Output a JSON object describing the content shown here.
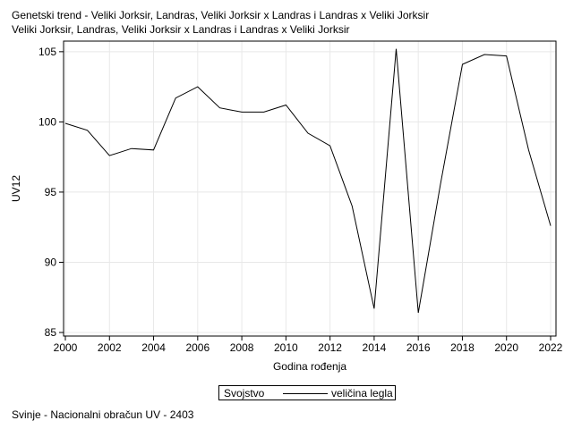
{
  "title_line1": "Genetski trend - Veliki Jorksir, Landras, Veliki Jorksir x Landras i Landras x Veliki Jorksir",
  "title_line2": "Veliki Jorksir, Landras, Veliki Jorksir x Landras i Landras x Veliki Jorksir",
  "legend": {
    "title": "Svojstvo",
    "series_label": "veličina legla"
  },
  "footnote": "Svinje - Nacionalni obračun UV - 2403",
  "colors": {
    "line": "#000000",
    "grid": "#e8e8e8",
    "axis": "#000000"
  },
  "chart_data": {
    "type": "line",
    "xlabel": "Godina rođenja",
    "ylabel": "UV12",
    "xlim": [
      2000,
      2022
    ],
    "ylim": [
      85,
      105.5
    ],
    "xticks": [
      2000,
      2002,
      2004,
      2006,
      2008,
      2010,
      2012,
      2014,
      2016,
      2018,
      2020,
      2022
    ],
    "yticks": [
      85,
      90,
      95,
      100,
      105
    ],
    "grid": true,
    "legend_position": "bottom",
    "series": [
      {
        "name": "veličina legla",
        "x": [
          2000,
          2001,
          2002,
          2003,
          2004,
          2005,
          2006,
          2007,
          2008,
          2009,
          2010,
          2011,
          2012,
          2013,
          2014,
          2015,
          2016,
          2017,
          2018,
          2019,
          2020,
          2021,
          2022
        ],
        "y": [
          99.9,
          99.4,
          97.6,
          98.1,
          98.0,
          101.7,
          102.5,
          101.0,
          100.7,
          100.7,
          101.2,
          99.2,
          98.3,
          94.0,
          86.7,
          105.2,
          86.4,
          95.5,
          104.1,
          104.8,
          104.7,
          98.0,
          92.6
        ]
      }
    ]
  }
}
